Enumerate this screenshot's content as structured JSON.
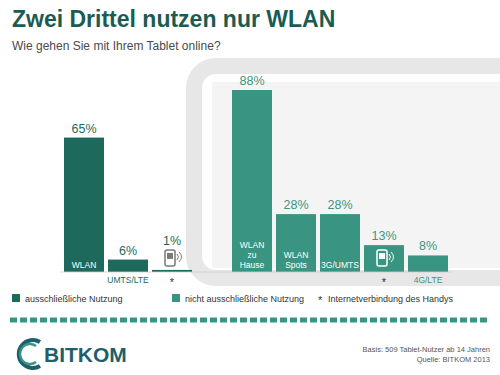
{
  "chart_data": {
    "type": "bar",
    "title": "Zwei Drittel nutzen nur WLAN",
    "subtitle": "Wie gehen Sie mit Ihrem Tablet online?",
    "categories": [
      "WLAN",
      "UMTS/LTE",
      null,
      "WLAN zu Hause",
      "WLAN Spots",
      "3G/UMTS",
      null,
      "4G/LTE"
    ],
    "series": [
      {
        "name": "ausschließliche Nutzung",
        "color": "#1d6a5c",
        "values": [
          65,
          6,
          1,
          null,
          null,
          null,
          null,
          null
        ],
        "value_labels": [
          "65%",
          "6%",
          "1%",
          null,
          null,
          null,
          null,
          null
        ]
      },
      {
        "name": "nicht ausschließliche Nutzung",
        "color": "#3a9482",
        "values": [
          null,
          null,
          null,
          88,
          28,
          28,
          13,
          8
        ],
        "value_labels": [
          null,
          null,
          null,
          "88%",
          "28%",
          "28%",
          "13%",
          "8%"
        ]
      }
    ],
    "ylim": [
      0,
      88
    ],
    "grid": false,
    "legend": "bottom",
    "data_labels": true,
    "tick_labels": "x",
    "footnote": {
      "symbol": "*",
      "text": "Internetverbindung des Handys"
    },
    "source": [
      "Basis: 509 Tablet-Nutzer ab 14 Jahren",
      "Quelle: BITKOM 2013"
    ],
    "logo": "BITKOM"
  }
}
